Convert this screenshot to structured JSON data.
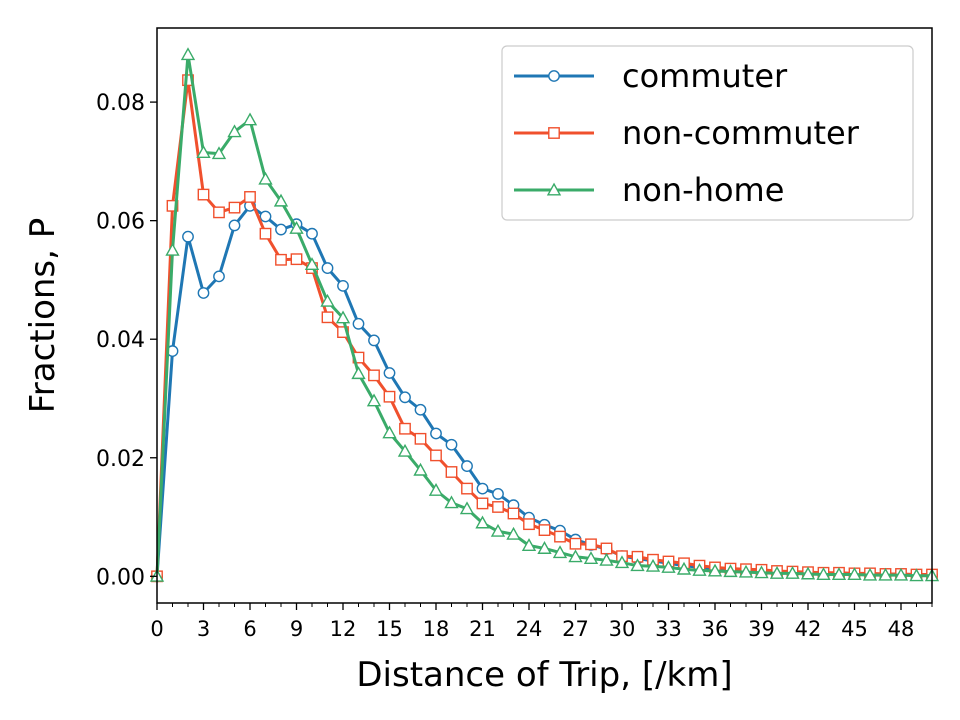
{
  "chart_data": {
    "type": "line",
    "title": "",
    "xlabel": "Distance of Trip, [/km]",
    "ylabel": "Fractions, P",
    "xlim": [
      0,
      50
    ],
    "ylim": [
      -0.0045,
      0.0925
    ],
    "xticks": [
      0,
      3,
      6,
      9,
      12,
      15,
      18,
      21,
      24,
      27,
      30,
      33,
      36,
      39,
      42,
      45,
      48
    ],
    "xtick_labels": [
      "0",
      "3",
      "6",
      "9",
      "12",
      "15",
      "18",
      "21",
      "24",
      "27",
      "30",
      "33",
      "36",
      "39",
      "42",
      "45",
      "48"
    ],
    "yticks": [
      0.0,
      0.02,
      0.04,
      0.06,
      0.08
    ],
    "ytick_labels": [
      "0.00",
      "0.02",
      "0.04",
      "0.06",
      "0.08"
    ],
    "grid": false,
    "legend_position": "top-right",
    "x": [
      0,
      1,
      2,
      3,
      4,
      5,
      6,
      7,
      8,
      9,
      10,
      11,
      12,
      13,
      14,
      15,
      16,
      17,
      18,
      19,
      20,
      21,
      22,
      23,
      24,
      25,
      26,
      27,
      28,
      29,
      30,
      31,
      32,
      33,
      34,
      35,
      36,
      37,
      38,
      39,
      40,
      41,
      42,
      43,
      44,
      45,
      46,
      47,
      48,
      49,
      50
    ],
    "series": [
      {
        "name": "commuter",
        "color": "#1f77b4",
        "marker": "circle",
        "values": [
          0.0,
          0.038,
          0.0573,
          0.0478,
          0.0506,
          0.0592,
          0.0625,
          0.0607,
          0.0585,
          0.0594,
          0.0578,
          0.052,
          0.049,
          0.0426,
          0.0398,
          0.0343,
          0.0302,
          0.0281,
          0.0241,
          0.0222,
          0.0186,
          0.0148,
          0.0139,
          0.012,
          0.0099,
          0.0087,
          0.0077,
          0.0062,
          0.0053,
          0.0046,
          0.0034,
          0.003,
          0.0026,
          0.0022,
          0.0018,
          0.0015,
          0.0013,
          0.0011,
          0.0009,
          0.0008,
          0.0007,
          0.0006,
          0.0005,
          0.0005,
          0.0004,
          0.0004,
          0.0003,
          0.0003,
          0.0003,
          0.0002,
          0.0002
        ]
      },
      {
        "name": "non-commuter",
        "color": "#f0502d",
        "marker": "square",
        "values": [
          0.0,
          0.0625,
          0.0837,
          0.0644,
          0.0614,
          0.0622,
          0.064,
          0.0578,
          0.0534,
          0.0535,
          0.052,
          0.0437,
          0.0412,
          0.0369,
          0.0339,
          0.0303,
          0.0249,
          0.0232,
          0.0204,
          0.0176,
          0.0148,
          0.0123,
          0.0117,
          0.0106,
          0.0088,
          0.0078,
          0.0067,
          0.0055,
          0.0054,
          0.0047,
          0.0034,
          0.0033,
          0.0028,
          0.0025,
          0.0022,
          0.0018,
          0.0015,
          0.0013,
          0.0012,
          0.0011,
          0.0009,
          0.0008,
          0.0007,
          0.0006,
          0.0006,
          0.0005,
          0.0005,
          0.0004,
          0.0004,
          0.0003,
          0.0003
        ]
      },
      {
        "name": "non-home",
        "color": "#3aab69",
        "marker": "triangle",
        "values": [
          0.0,
          0.055,
          0.088,
          0.0715,
          0.0713,
          0.075,
          0.077,
          0.067,
          0.0633,
          0.0587,
          0.0526,
          0.0464,
          0.0436,
          0.0342,
          0.0296,
          0.0242,
          0.0211,
          0.0179,
          0.0145,
          0.0124,
          0.0114,
          0.009,
          0.0076,
          0.0071,
          0.0052,
          0.0047,
          0.004,
          0.0033,
          0.003,
          0.0027,
          0.0023,
          0.0018,
          0.0017,
          0.0015,
          0.0012,
          0.001,
          0.0009,
          0.0008,
          0.0007,
          0.0006,
          0.0005,
          0.0005,
          0.0004,
          0.0003,
          0.0003,
          0.0003,
          0.0002,
          0.0002,
          0.0002,
          0.0001,
          0.0001
        ]
      }
    ]
  }
}
